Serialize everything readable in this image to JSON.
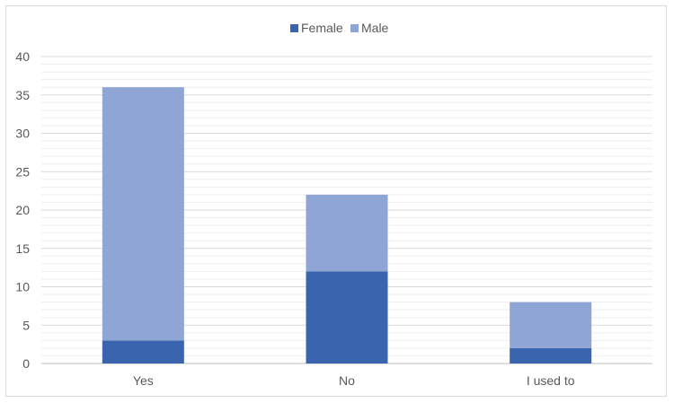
{
  "chart_data": {
    "type": "bar",
    "stacked": true,
    "categories": [
      "Yes",
      "No",
      "I used to"
    ],
    "series": [
      {
        "name": "Female",
        "values": [
          3,
          12,
          2
        ],
        "color": "#3a65ae"
      },
      {
        "name": "Male",
        "values": [
          33,
          10,
          6
        ],
        "color": "#8fa5d6"
      }
    ],
    "ylim": [
      0,
      40
    ],
    "yticks": [
      0,
      5,
      10,
      15,
      20,
      25,
      30,
      35,
      40
    ],
    "minor_grid_step": 1,
    "grid": true,
    "legend": "top-center"
  }
}
